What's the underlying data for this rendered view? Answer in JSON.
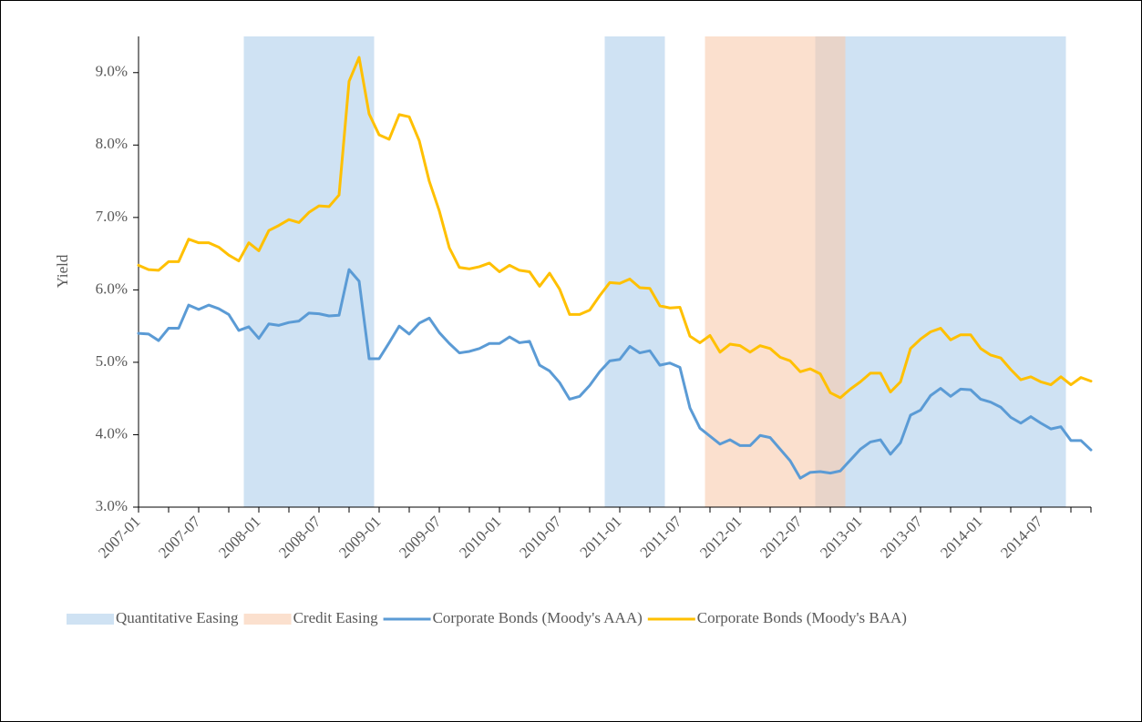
{
  "chart_data": {
    "type": "combo",
    "y_label": "Yield",
    "legend": "bottom",
    "grid": false,
    "categories": [
      "2007-01",
      null,
      null,
      null,
      null,
      null,
      "2007-07",
      null,
      null,
      null,
      null,
      null,
      "2008-01",
      null,
      null,
      null,
      null,
      null,
      "2008-07",
      null,
      null,
      null,
      null,
      null,
      "2009-01",
      null,
      null,
      null,
      null,
      null,
      "2009-07",
      null,
      null,
      null,
      null,
      null,
      "2010-01",
      null,
      null,
      null,
      null,
      null,
      "2010-07",
      null,
      null,
      null,
      null,
      null,
      "2011-01",
      null,
      null,
      null,
      null,
      null,
      "2011-07",
      null,
      null,
      null,
      null,
      null,
      "2012-01",
      null,
      null,
      null,
      null,
      null,
      "2012-07",
      null,
      null,
      null,
      null,
      null,
      "2013-01",
      null,
      null,
      null,
      null,
      null,
      "2013-07",
      null,
      null,
      null,
      null,
      null,
      "2014-01",
      null,
      null,
      null,
      null,
      null,
      "2014-07",
      null,
      null,
      null,
      null,
      null
    ],
    "ylim": [
      3,
      9.5
    ],
    "yticks": [
      {
        "value": 3,
        "label": "3.0%"
      },
      {
        "value": 4,
        "label": "4.0%"
      },
      {
        "value": 5,
        "label": "5.0%"
      },
      {
        "value": 6,
        "label": "6.0%"
      },
      {
        "value": 7,
        "label": "7.0%"
      },
      {
        "value": 8,
        "label": "8.0%"
      },
      {
        "value": 9,
        "label": "9.0%"
      }
    ],
    "y2lim": [
      0,
      1
    ],
    "series": [
      {
        "name": "Quantitative Easing",
        "type": "bar",
        "axis": "y2",
        "color": "#cfe2f3",
        "values": [
          0,
          0,
          0,
          0,
          0,
          0,
          0,
          0,
          0,
          0,
          0,
          1,
          1,
          1,
          1,
          1,
          1,
          1,
          1,
          1,
          1,
          1,
          1,
          1,
          0,
          0,
          0,
          0,
          0,
          0,
          0,
          0,
          0,
          0,
          0,
          0,
          0,
          0,
          0,
          0,
          0,
          0,
          0,
          0,
          0,
          0,
          0,
          1,
          1,
          1,
          1,
          1,
          1,
          0,
          0,
          0,
          0,
          0,
          0,
          0,
          0,
          0,
          0,
          0,
          0,
          0,
          0,
          0,
          1,
          1,
          1,
          1,
          1,
          1,
          1,
          1,
          1,
          1,
          1,
          1,
          1,
          1,
          1,
          1,
          1,
          1,
          1,
          1,
          1,
          1,
          1,
          1,
          1,
          0,
          0,
          0
        ]
      },
      {
        "name": "Credit Easing",
        "type": "bar",
        "axis": "y2",
        "color": "#f8cbad",
        "values": [
          0,
          0,
          0,
          0,
          0,
          0,
          0,
          0,
          0,
          0,
          0,
          0,
          0,
          0,
          0,
          0,
          0,
          0,
          0,
          0,
          0,
          0,
          0,
          0,
          0,
          0,
          0,
          0,
          0,
          0,
          0,
          0,
          0,
          0,
          0,
          0,
          0,
          0,
          0,
          0,
          0,
          0,
          0,
          0,
          0,
          0,
          0,
          0,
          0,
          0,
          0,
          0,
          0,
          0,
          0,
          0,
          0,
          1,
          1,
          1,
          1,
          1,
          1,
          1,
          1,
          1,
          1,
          1,
          1,
          1,
          1,
          0,
          0,
          0,
          0,
          0,
          0,
          0,
          0,
          0,
          0,
          0,
          0,
          0,
          0,
          0,
          0,
          0,
          0,
          0,
          0,
          0,
          0,
          0,
          0,
          0
        ]
      },
      {
        "name": "Corporate Bonds (Moody's AAA)",
        "type": "line",
        "color": "#5b9bd5",
        "values": [
          5.4,
          5.39,
          5.3,
          5.47,
          5.47,
          5.79,
          5.73,
          5.79,
          5.74,
          5.66,
          5.44,
          5.49,
          5.33,
          5.53,
          5.51,
          5.55,
          5.57,
          5.68,
          5.67,
          5.64,
          5.65,
          6.28,
          6.12,
          5.05,
          5.05,
          5.27,
          5.5,
          5.39,
          5.54,
          5.61,
          5.41,
          5.26,
          5.13,
          5.15,
          5.19,
          5.26,
          5.26,
          5.35,
          5.27,
          5.29,
          4.96,
          4.88,
          4.72,
          4.49,
          4.53,
          4.68,
          4.87,
          5.02,
          5.04,
          5.22,
          5.13,
          5.16,
          4.96,
          4.99,
          4.93,
          4.37,
          4.09,
          3.98,
          3.87,
          3.93,
          3.85,
          3.85,
          3.99,
          3.96,
          3.8,
          3.64,
          3.4,
          3.48,
          3.49,
          3.47,
          3.5,
          3.65,
          3.8,
          3.9,
          3.93,
          3.73,
          3.89,
          4.27,
          4.34,
          4.54,
          4.64,
          4.53,
          4.63,
          4.62,
          4.49,
          4.45,
          4.38,
          4.24,
          4.16,
          4.25,
          4.16,
          4.08,
          4.11,
          3.92,
          3.92,
          3.79
        ]
      },
      {
        "name": "Corporate Bonds (Moody's BAA)",
        "type": "line",
        "color": "#ffc000",
        "values": [
          6.34,
          6.28,
          6.27,
          6.39,
          6.39,
          6.7,
          6.65,
          6.65,
          6.59,
          6.48,
          6.4,
          6.65,
          6.54,
          6.82,
          6.89,
          6.97,
          6.93,
          7.07,
          7.16,
          7.15,
          7.31,
          8.88,
          9.21,
          8.43,
          8.14,
          8.08,
          8.42,
          8.39,
          8.06,
          7.5,
          7.09,
          6.58,
          6.31,
          6.29,
          6.32,
          6.37,
          6.25,
          6.34,
          6.27,
          6.25,
          6.05,
          6.23,
          6.01,
          5.66,
          5.66,
          5.72,
          5.92,
          6.1,
          6.09,
          6.15,
          6.03,
          6.02,
          5.78,
          5.75,
          5.76,
          5.36,
          5.27,
          5.37,
          5.14,
          5.25,
          5.23,
          5.14,
          5.23,
          5.19,
          5.07,
          5.02,
          4.87,
          4.91,
          4.84,
          4.58,
          4.51,
          4.63,
          4.73,
          4.85,
          4.85,
          4.59,
          4.73,
          5.19,
          5.32,
          5.42,
          5.47,
          5.31,
          5.38,
          5.38,
          5.19,
          5.1,
          5.06,
          4.9,
          4.76,
          4.8,
          4.73,
          4.69,
          4.8,
          4.69,
          4.79,
          4.74
        ]
      }
    ]
  }
}
